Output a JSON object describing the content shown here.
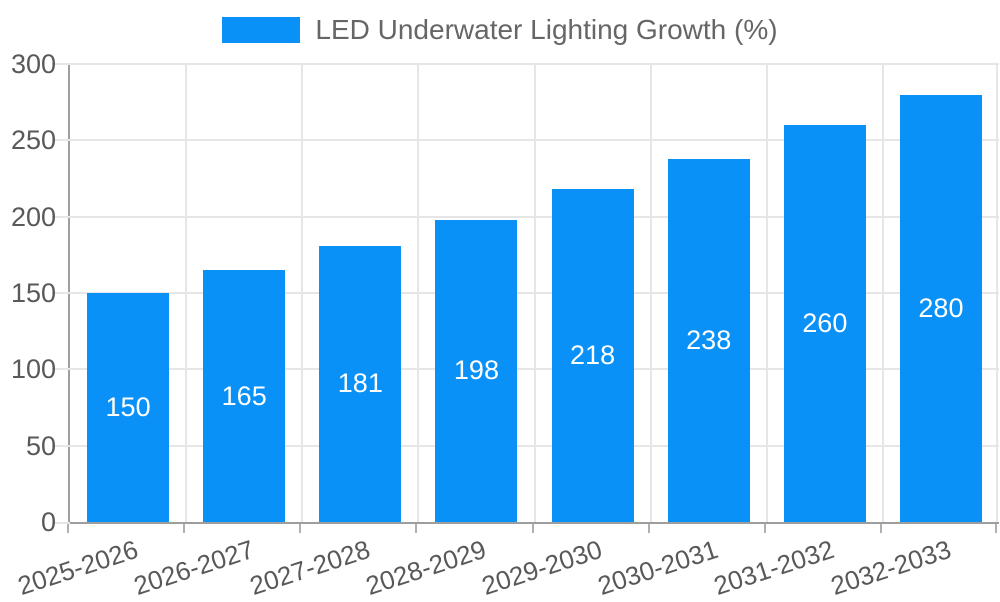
{
  "legend": {
    "label": "LED Underwater Lighting Growth (%)"
  },
  "chart_data": {
    "type": "bar",
    "title": "LED Underwater Lighting Growth (%)",
    "categories": [
      "2025-2026",
      "2026-2027",
      "2027-2028",
      "2028-2029",
      "2029-2030",
      "2030-2031",
      "2031-2032",
      "2032-2033"
    ],
    "series": [
      {
        "name": "LED Underwater Lighting Growth (%)",
        "values": [
          150,
          165,
          181,
          198,
          218,
          238,
          260,
          280
        ]
      }
    ],
    "value_labels": [
      "150",
      "165",
      "181",
      "198",
      "218",
      "238",
      "260",
      "280"
    ],
    "xlabel": "",
    "ylabel": "",
    "ylim": [
      0,
      300
    ],
    "yticks": [
      0,
      50,
      100,
      150,
      200,
      250,
      300
    ],
    "grid": true,
    "legend_position": "top-center",
    "x_label_rotation_deg": -18,
    "bar_color": "#0A91F7",
    "value_label_color": "#ffffff",
    "axis_color": "#9e9e9e",
    "grid_color": "#e6e6e6",
    "tick_label_color": "#595959",
    "legend_text_color": "#666666",
    "background_color": "#ffffff"
  }
}
